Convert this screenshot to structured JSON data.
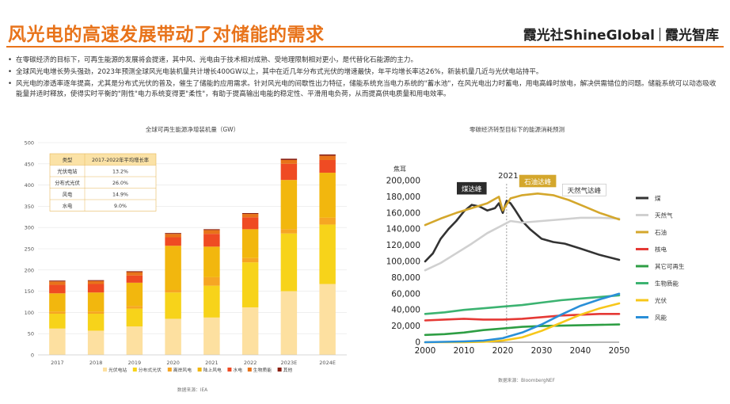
{
  "header": {
    "title": "风光电的高速发展带动了对储能的需求",
    "brand_left": "霞光社ShineGIobal",
    "brand_right": "霞光智库"
  },
  "bullets": [
    "在零碳经济的目标下，可再生能源的发展将会提速，其中风、光电由于技术相对成熟、受地理限制相对更小，是代替化石能源的主力。",
    "全球风光电增长势头强劲，2023年预测全球风光电装机量共计增长400GW以上，其中在近几年分布式光伏的增速最快，年平均增长率达26%，新装机量几近与光伏电站持平。",
    "风光电的渗透率逐年提高，尤其是分布式光伏的普及，催生了储能的应用需求。针对风光电的间歇性出力特征，储能系统充当电力系统的\"蓄水池\"，在风光电出力时蓄电，用电高峰时放电，解决供需错位的问题。储能系统可以动态吸收能量并适时释放，使得实时平衡的\"刚性\"电力系统变得更\"柔性\"，有助于提高输出电能的稳定性、平滑用电负荷，从而提高供电质量和用电效率。"
  ],
  "chart_data": [
    {
      "type": "bar",
      "stacked": true,
      "title": "全球可再生能源净增装机量（GW）",
      "source": "数据来源：IEA",
      "categories": [
        "2017",
        "2018",
        "2019",
        "2020",
        "2021",
        "2022",
        "2023E",
        "2024E"
      ],
      "ylim": [
        0,
        500
      ],
      "yticks": [
        0,
        50,
        100,
        150,
        200,
        250,
        300,
        350,
        400,
        450,
        500
      ],
      "series": [
        {
          "name": "光伏电站",
          "color": "#fde0a0",
          "values": [
            62,
            57,
            67,
            85,
            88,
            112,
            150,
            167
          ]
        },
        {
          "name": "分布式光伏",
          "color": "#f7d31a",
          "values": [
            35,
            40,
            42,
            62,
            75,
            106,
            136,
            140
          ]
        },
        {
          "name": "离岸风电",
          "color": "#f6a623",
          "values": [
            5,
            5,
            6,
            6,
            20,
            10,
            10,
            16
          ]
        },
        {
          "name": "陆上风电",
          "color": "#f2b70e",
          "values": [
            43,
            45,
            55,
            104,
            72,
            68,
            116,
            106
          ]
        },
        {
          "name": "水电",
          "color": "#ef4b23",
          "values": [
            20,
            20,
            17,
            20,
            30,
            28,
            38,
            30
          ]
        },
        {
          "name": "生物质能",
          "color": "#e8731a",
          "values": [
            8,
            7,
            8,
            8,
            9,
            8,
            9,
            10
          ]
        },
        {
          "name": "其他",
          "color": "#8a1f11",
          "values": [
            2,
            2,
            2,
            2,
            2,
            2,
            3,
            3
          ]
        }
      ],
      "table": {
        "headers": [
          "类型",
          "2017-2022年平均增长率"
        ],
        "rows": [
          [
            "光伏电站",
            "13.2%"
          ],
          [
            "分布式光伏",
            "26.0%"
          ],
          [
            "风电",
            "14.9%"
          ],
          [
            "水电",
            "9.0%"
          ]
        ]
      }
    },
    {
      "type": "line",
      "title": "零碳经济转型目标下的能源消耗预测",
      "source": "数据来源：BloombergNEF",
      "ylabel": "焦耳",
      "xlim": [
        2000,
        2050
      ],
      "ylim": [
        0,
        200000
      ],
      "xticks": [
        2000,
        2010,
        2020,
        2030,
        2040,
        2050
      ],
      "yticks": [
        0,
        20000,
        40000,
        60000,
        80000,
        100000,
        120000,
        140000,
        160000,
        180000,
        200000
      ],
      "ytick_labels": [
        "0",
        "20,000",
        "40,000",
        "60,000",
        "80,000",
        "100,000",
        "120,000",
        "140,000",
        "160,000",
        "180,000",
        "200,000"
      ],
      "year_label": "2021",
      "annotations": [
        {
          "text": "煤达峰",
          "x": 2012,
          "y": 190000,
          "style": "dark"
        },
        {
          "text": "石油达峰",
          "x": 2029,
          "y": 199000,
          "style": "gold"
        },
        {
          "text": "天然气达峰",
          "x": 2041,
          "y": 188000,
          "style": "plain"
        }
      ],
      "series": [
        {
          "name": "煤",
          "color": "#333333",
          "x": [
            2000,
            2002,
            2004,
            2006,
            2008,
            2010,
            2012,
            2014,
            2016,
            2018,
            2019,
            2020,
            2021,
            2022,
            2023,
            2025,
            2027,
            2030,
            2033,
            2036,
            2040,
            2045,
            2050
          ],
          "y": [
            100000,
            110000,
            128000,
            140000,
            150000,
            162000,
            170000,
            168000,
            163000,
            166000,
            172000,
            160000,
            175000,
            172000,
            165000,
            150000,
            140000,
            128000,
            124000,
            122000,
            116000,
            108000,
            102000
          ]
        },
        {
          "name": "天然气",
          "color": "#d0d0d0",
          "x": [
            2000,
            2004,
            2008,
            2012,
            2016,
            2020,
            2022,
            2025,
            2030,
            2035,
            2040,
            2045,
            2050
          ],
          "y": [
            89000,
            98000,
            110000,
            122000,
            135000,
            145000,
            150000,
            148000,
            150000,
            152000,
            154000,
            154000,
            153000
          ]
        },
        {
          "name": "石油",
          "color": "#d4a72c",
          "x": [
            2000,
            2004,
            2008,
            2012,
            2016,
            2019,
            2020,
            2022,
            2025,
            2029,
            2033,
            2037,
            2041,
            2045,
            2050
          ],
          "y": [
            145000,
            153000,
            160000,
            166000,
            172000,
            180000,
            163000,
            178000,
            182000,
            184000,
            182000,
            176000,
            168000,
            160000,
            152000
          ]
        },
        {
          "name": "核电",
          "color": "#e53935",
          "x": [
            2000,
            2005,
            2010,
            2015,
            2020,
            2025,
            2030,
            2035,
            2040,
            2045,
            2050
          ],
          "y": [
            27000,
            28000,
            29000,
            28000,
            28000,
            29000,
            31000,
            33000,
            34000,
            35000,
            35000
          ]
        },
        {
          "name": "其它可再生",
          "color": "#2e9e44",
          "x": [
            2000,
            2005,
            2010,
            2015,
            2020,
            2025,
            2030,
            2035,
            2040,
            2045,
            2050
          ],
          "y": [
            9000,
            10000,
            12000,
            15000,
            17000,
            19000,
            20000,
            20500,
            21000,
            21500,
            22000
          ]
        },
        {
          "name": "生物质能",
          "color": "#3cb371",
          "x": [
            2000,
            2005,
            2010,
            2015,
            2020,
            2025,
            2030,
            2035,
            2040,
            2045,
            2050
          ],
          "y": [
            35000,
            37000,
            40000,
            42000,
            44000,
            46000,
            49000,
            52000,
            54000,
            56000,
            58000
          ]
        },
        {
          "name": "光伏",
          "color": "#f7c71a",
          "x": [
            2000,
            2010,
            2015,
            2020,
            2025,
            2030,
            2035,
            2040,
            2045,
            2050
          ],
          "y": [
            0,
            0,
            500,
            2000,
            6000,
            14000,
            24000,
            34000,
            42000,
            48000
          ]
        },
        {
          "name": "风能",
          "color": "#2a8fd8",
          "x": [
            2000,
            2010,
            2015,
            2020,
            2025,
            2030,
            2035,
            2040,
            2045,
            2050
          ],
          "y": [
            0,
            1000,
            2000,
            5000,
            12000,
            22000,
            34000,
            45000,
            53000,
            60000
          ]
        }
      ]
    }
  ]
}
